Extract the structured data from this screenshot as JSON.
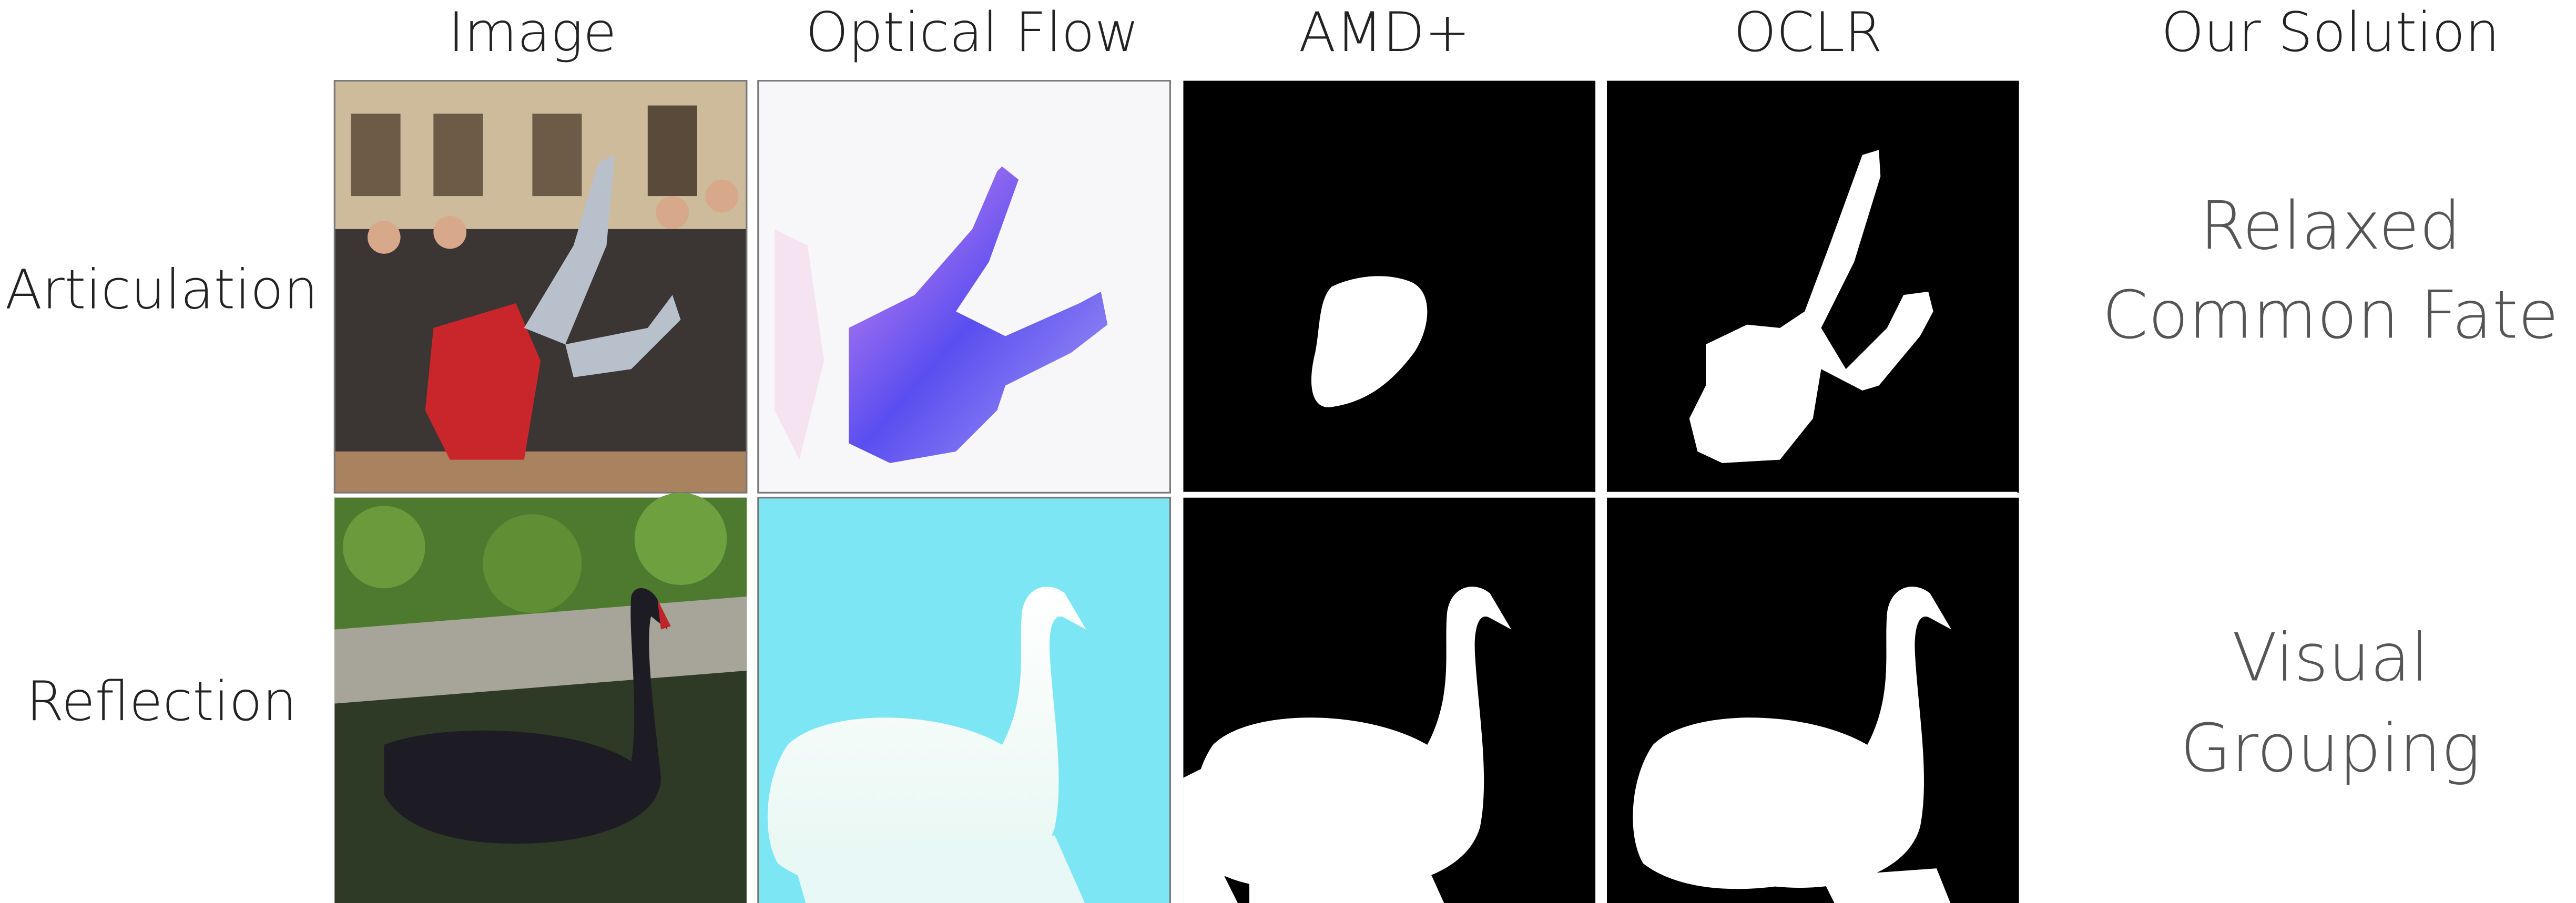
{
  "columns": [
    "Image",
    "Optical Flow",
    "AMD+",
    "OCLR",
    "Our Solution"
  ],
  "rows": [
    {
      "label": "Articulation",
      "solution": [
        "Relaxed",
        "Common Fate"
      ]
    },
    {
      "label": "Reflection",
      "solution": [
        "Visual",
        "Grouping"
      ]
    }
  ]
}
